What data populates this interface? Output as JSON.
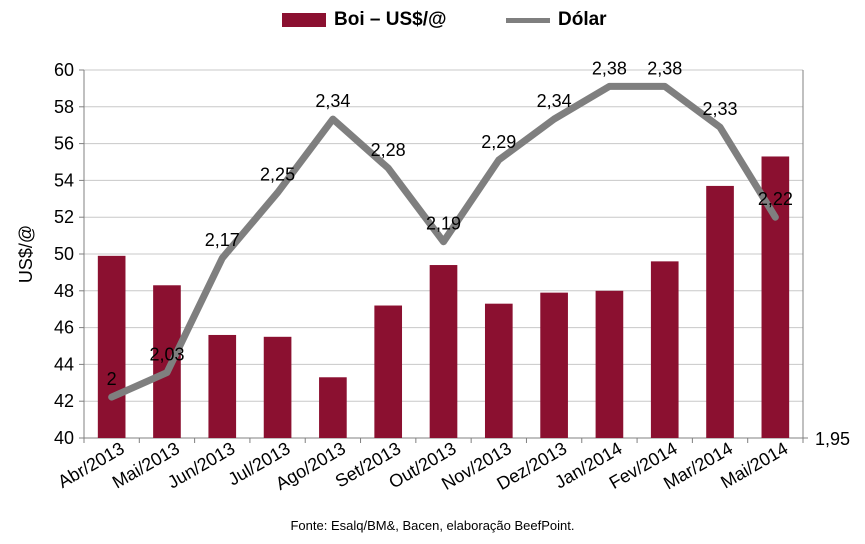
{
  "legend": {
    "bar_label": "Boi – US$/@",
    "line_label": "Dólar"
  },
  "source": "Fonte: Esalq/BM&, Bacen, elaboração BeefPoint.",
  "colors": {
    "bar": "#8b1030",
    "line": "#7f7f7f",
    "grid": "#c8c8c8",
    "axis": "#808080"
  },
  "chart_data": {
    "type": "bar",
    "categories": [
      "Abr/2013",
      "Mai/2013",
      "Jun/2013",
      "Jul/2013",
      "Ago/2013",
      "Set/2013",
      "Out/2013",
      "Nov/2013",
      "Dez/2013",
      "Jan/2014",
      "Fev/2014",
      "Mar/2014",
      "Mai/2014"
    ],
    "ylabel": "US$/@",
    "ylim": [
      40,
      60
    ],
    "yticks": [
      "40",
      "42",
      "44",
      "46",
      "48",
      "50",
      "52",
      "54",
      "56",
      "58",
      "60"
    ],
    "y2_min_label": "1,95",
    "y2lim": [
      1.95,
      2.4
    ],
    "grid": true,
    "legend_position": "top",
    "series": [
      {
        "name": "Boi – US$/@",
        "type": "bar",
        "values": [
          49.9,
          48.3,
          45.6,
          45.5,
          43.3,
          47.2,
          49.4,
          47.3,
          47.9,
          48.0,
          49.6,
          53.7,
          55.3
        ]
      },
      {
        "name": "Dólar",
        "type": "line",
        "axis": "secondary",
        "values": [
          2.0,
          2.03,
          2.17,
          2.25,
          2.34,
          2.28,
          2.19,
          2.29,
          2.34,
          2.38,
          2.38,
          2.33,
          2.22
        ],
        "labels": [
          "2",
          "2,03",
          "2,17",
          "2,25",
          "2,34",
          "2,28",
          "2,19",
          "2,29",
          "2,34",
          "2,38",
          "2,38",
          "2,33",
          "2,22"
        ]
      }
    ]
  }
}
